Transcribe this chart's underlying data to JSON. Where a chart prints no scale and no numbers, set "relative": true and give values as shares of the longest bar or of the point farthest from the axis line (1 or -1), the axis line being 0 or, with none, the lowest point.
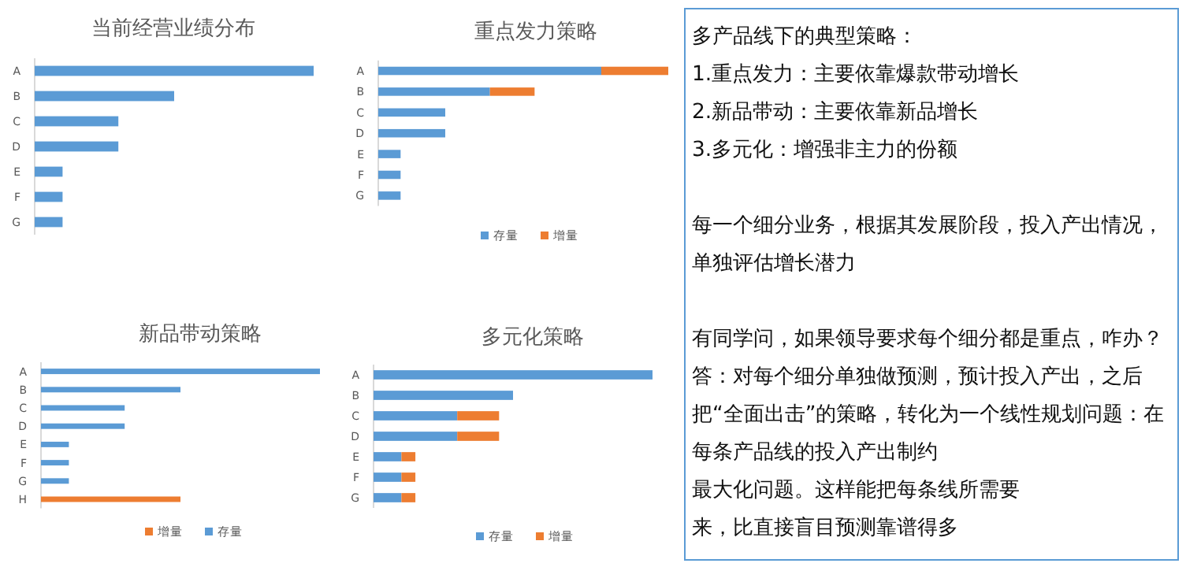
{
  "chart_data": [
    {
      "type": "bar",
      "title": "当前经营业绩分布",
      "orientation": "horizontal",
      "relative": true,
      "categories": [
        "A",
        "B",
        "C",
        "D",
        "E",
        "F",
        "G"
      ],
      "series": [
        {
          "color": "#5b9bd5",
          "values": [
            1,
            0.5,
            0.3,
            0.3,
            0.1,
            0.1,
            0.1
          ]
        }
      ],
      "legend": false
    },
    {
      "type": "bar",
      "title": "重点发力策略",
      "orientation": "horizontal",
      "relative": true,
      "stacked": true,
      "categories": [
        "A",
        "B",
        "C",
        "D",
        "E",
        "F",
        "G"
      ],
      "series": [
        {
          "name": "存量",
          "color": "#5b9bd5",
          "values": [
            0.769,
            0.385,
            0.231,
            0.231,
            0.077,
            0.077,
            0.077
          ]
        },
        {
          "name": "增量",
          "color": "#ed7d31",
          "values": [
            0.231,
            0.154,
            null,
            null,
            null,
            null,
            null
          ]
        }
      ],
      "legend": "bottom"
    },
    {
      "type": "bar",
      "title": "新品带动策略",
      "orientation": "horizontal",
      "relative": true,
      "stacked": true,
      "categories": [
        "A",
        "B",
        "C",
        "D",
        "E",
        "F",
        "G",
        "H"
      ],
      "series": [
        {
          "name": "增量",
          "color": "#ed7d31",
          "values": [
            null,
            null,
            null,
            null,
            null,
            null,
            null,
            0.5
          ]
        },
        {
          "name": "存量",
          "color": "#5b9bd5",
          "values": [
            1,
            0.5,
            0.3,
            0.3,
            0.1,
            0.1,
            0.1,
            null
          ]
        }
      ],
      "legend": "bottom"
    },
    {
      "type": "bar",
      "title": "多元化策略",
      "orientation": "horizontal",
      "relative": true,
      "stacked": true,
      "categories": [
        "A",
        "B",
        "C",
        "D",
        "E",
        "F",
        "G"
      ],
      "series": [
        {
          "name": "存量",
          "color": "#5b9bd5",
          "values": [
            1,
            0.5,
            0.3,
            0.3,
            0.1,
            0.1,
            0.1
          ]
        },
        {
          "name": "增量",
          "color": "#ed7d31",
          "values": [
            null,
            null,
            0.15,
            0.15,
            0.05,
            0.05,
            0.05
          ]
        }
      ],
      "legend": "bottom"
    },
    {
      "type": "other",
      "title": "多产品线下的典型策略：",
      "annotations": [
        "1.重点发力：主要依靠爆款带动增长",
        "2.新品带动：主要依靠新品增长",
        "3.多元化：增强非主力的份额",
        "每一个细分业务，根据其发展阶段，投入产出情况，单独评估增长潜力",
        "有同学问，如果领导要求每个细分都是重点，咋办？答：对每个细分单独做预测，预计投入产出，之后把“全面出击”的策略，转化为一个线性规划问题：在每条产品线的投入产出制约",
        "最大化问题。这样能把每条线所需要",
        "来，比直接盲目预测靠谱得多"
      ]
    }
  ]
}
